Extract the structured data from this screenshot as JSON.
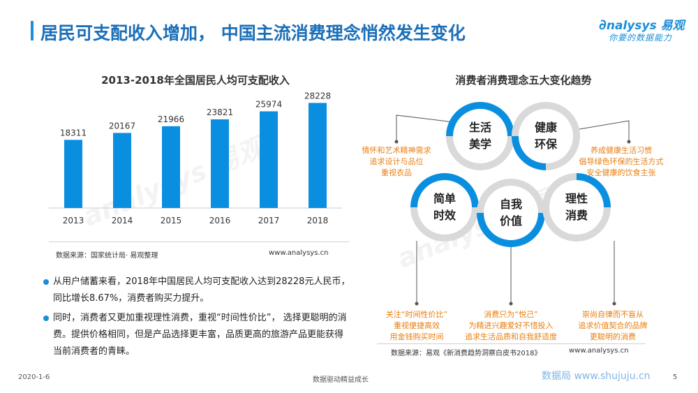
{
  "header": {
    "title": "居民可支配收入增加， 中国主流消费理念悄然发生变化",
    "logo_main": "nalysys 易观",
    "logo_sub": "你要的数据能力"
  },
  "chart_data": {
    "type": "bar",
    "title": "2013-2018年全国居民人均可支配收入",
    "categories": [
      "2013",
      "2014",
      "2015",
      "2016",
      "2017",
      "2018"
    ],
    "values": [
      18311,
      20167,
      21966,
      23821,
      25974,
      28228
    ],
    "xlabel": "",
    "ylabel": "",
    "ylim": [
      0,
      30000
    ],
    "bar_color": "#0a8fe0",
    "grid": false
  },
  "chart_source": "数据来源：国家统计局· 易观整理",
  "chart_url": "www.analysys.cn",
  "bullets": [
    "从用户储蓄来看，2018年中国居民人均可支配收入达到28228元人民币，同比增长8.67%，消费者购买力提升。",
    "同时，消费者又更加重视理性消费，重视“时间性价比”， 选择更聪明的消费。提供价格相同，但是产品选择更丰富，品质更高的旅游产品更能获得当前消费者的青睐。"
  ],
  "diagram": {
    "title": "消费者消费理念五大变化趋势",
    "circles": [
      {
        "label_1": "生活",
        "label_2": "美学"
      },
      {
        "label_1": "健康",
        "label_2": "环保"
      },
      {
        "label_1": "简单",
        "label_2": "时效"
      },
      {
        "label_1": "自我",
        "label_2": "价值"
      },
      {
        "label_1": "理性",
        "label_2": "消费"
      }
    ],
    "notes": {
      "top_left": [
        "情怀和艺术精神需求",
        "追求设计与品位",
        "重视衣品"
      ],
      "top_right": [
        "养成健康生活习惯",
        "倡导绿色环保的生活方式",
        "安全健康的饮食主张"
      ],
      "bottom_left": [
        "关注“时间性价比”",
        "重视便捷高效",
        "用金钱购买时间"
      ],
      "bottom_mid": [
        "消费只为“悦己”",
        "为精进兴趣爱好不惜投入",
        "追求生活品质和自我舒适度"
      ],
      "bottom_right": [
        "崇尚自律而不盲从",
        "追求价值契合的品牌",
        "更聪明的消费"
      ]
    },
    "source": "数据来源：易观《新消费趋势洞察白皮书2018》",
    "url": "www.analysys.cn",
    "accent": "#0a8fe0",
    "note_color": "#e87e0c"
  },
  "footer": {
    "date": "2020-1-6",
    "slogan": "数据驱动精益成长",
    "watermark": "数据局  www.shujuju.cn",
    "page": "5"
  }
}
